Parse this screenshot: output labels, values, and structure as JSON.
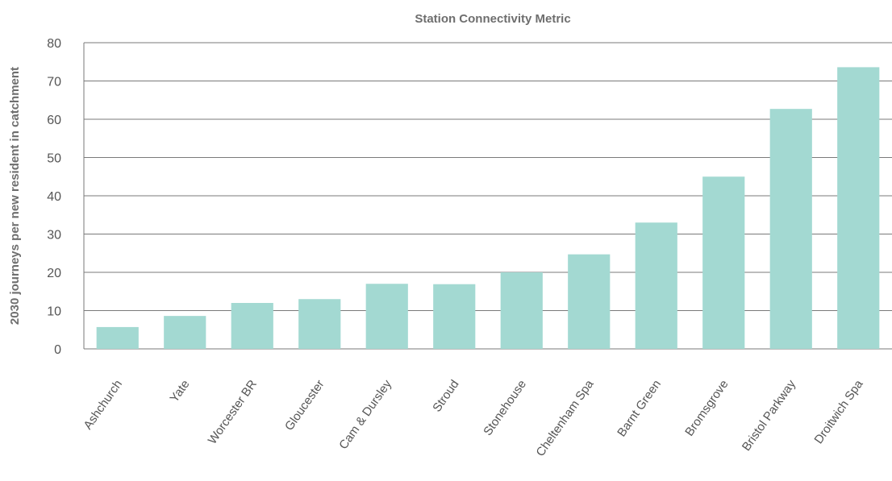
{
  "chart_data": {
    "type": "bar",
    "title": "Station Connectivity Metric",
    "xlabel": "",
    "ylabel": "2030 journeys per new resident in catchment",
    "categories": [
      "Ashchurch",
      "Yate",
      "Worcester BR",
      "Gloucester",
      "Cam & Dursley",
      "Stroud",
      "Stonehouse",
      "Cheltenham Spa",
      "Barnt Green",
      "Bromsgrove",
      "Bristol Parkway",
      "Droitwich Spa"
    ],
    "values": [
      5.7,
      8.6,
      12.0,
      13.0,
      17.0,
      16.9,
      20.0,
      24.7,
      33.0,
      45.0,
      62.7,
      73.6
    ],
    "ylim": [
      0,
      80
    ],
    "yticks": [
      0,
      10,
      20,
      30,
      40,
      50,
      60,
      70,
      80
    ],
    "grid": true,
    "legend": "none",
    "colors": {
      "bar": "#a3d9d2",
      "grid": "#7a7a7a",
      "text": "#555555"
    }
  }
}
